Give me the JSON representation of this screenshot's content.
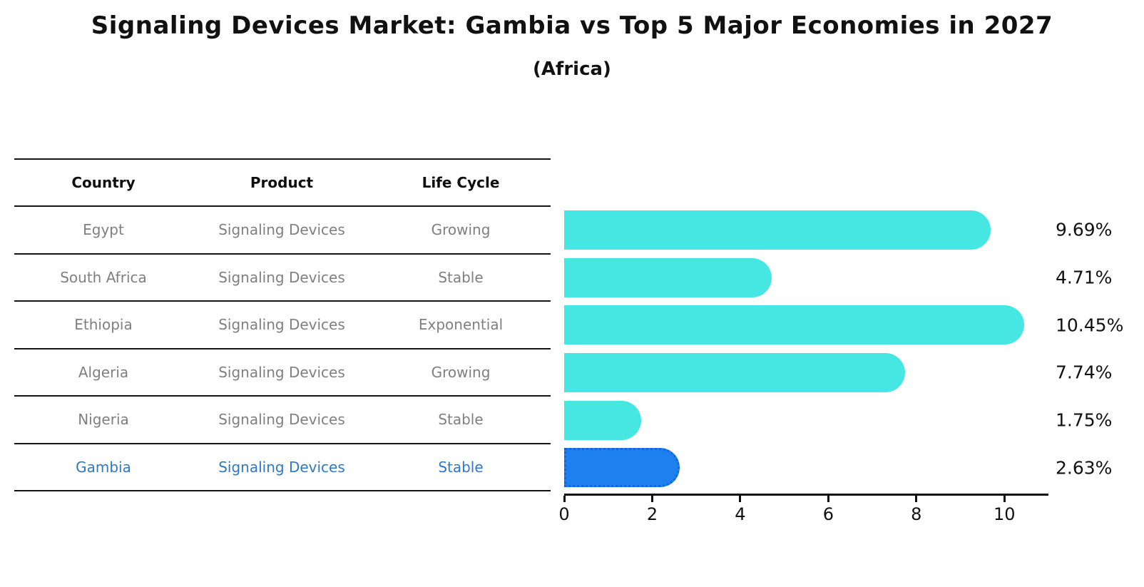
{
  "title": "Signaling Devices Market: Gambia vs Top 5 Major Economies in 2027",
  "subtitle": "(Africa)",
  "table": {
    "headers": [
      "Country",
      "Product",
      "Life Cycle"
    ],
    "rows": [
      {
        "country": "Egypt",
        "product": "Signaling Devices",
        "life_cycle": "Growing",
        "highlight": false
      },
      {
        "country": "South Africa",
        "product": "Signaling Devices",
        "life_cycle": "Stable",
        "highlight": false
      },
      {
        "country": "Ethiopia",
        "product": "Signaling Devices",
        "life_cycle": "Exponential",
        "highlight": false
      },
      {
        "country": "Algeria",
        "product": "Signaling Devices",
        "life_cycle": "Growing",
        "highlight": false
      },
      {
        "country": "Nigeria",
        "product": "Signaling Devices",
        "life_cycle": "Stable",
        "highlight": false
      },
      {
        "country": "Gambia",
        "product": "Signaling Devices",
        "life_cycle": "Stable",
        "highlight": true
      }
    ]
  },
  "chart_data": {
    "type": "bar",
    "orientation": "horizontal",
    "categories": [
      "Egypt",
      "South Africa",
      "Ethiopia",
      "Algeria",
      "Nigeria",
      "Gambia"
    ],
    "values": [
      9.69,
      4.71,
      10.45,
      7.74,
      1.75,
      2.63
    ],
    "value_labels": [
      "9.69%",
      "4.71%",
      "10.45%",
      "7.74%",
      "1.75%",
      "2.63%"
    ],
    "xticks": [
      0,
      2,
      4,
      6,
      8,
      10
    ],
    "xlim": [
      0,
      11
    ],
    "grid": false,
    "legend": false,
    "highlight_index": 5,
    "bar_color": "#46e7e2",
    "highlight_bar_color": "#1e80ee",
    "highlight_border_color": "#1465dd",
    "highlight_text_color": "#2e78c8",
    "row_text_color": "#7f7f7f",
    "axis_color": "#111111"
  }
}
